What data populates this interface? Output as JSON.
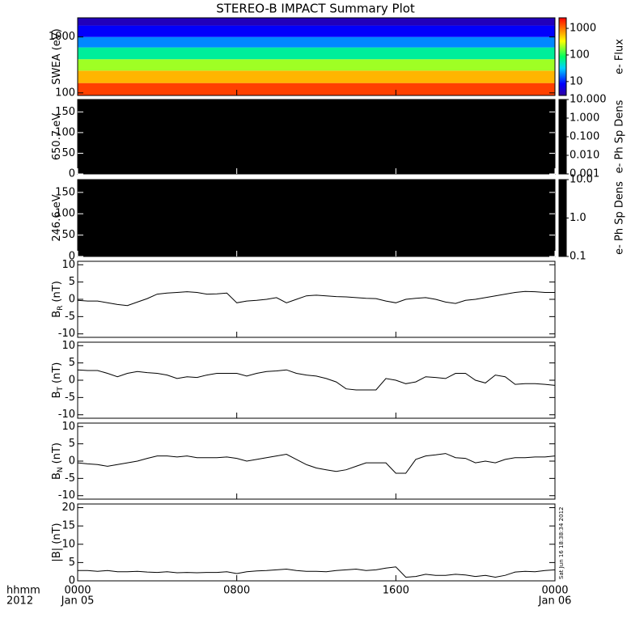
{
  "title": "STEREO-B IMPACT Summary Plot",
  "timestamp": "Sat Jun 16 18:38:34 2012",
  "xaxis": {
    "label": "hhmm",
    "year": "2012",
    "xlim": [
      0,
      24
    ],
    "xticks": [
      {
        "value": 0,
        "label": "0000",
        "date": "Jan 05"
      },
      {
        "value": 8,
        "label": "0800"
      },
      {
        "value": 16,
        "label": "1600"
      },
      {
        "value": 24,
        "label": "0000",
        "date": "Jan 06"
      }
    ]
  },
  "chart_data": [
    {
      "type": "spectrogram",
      "ylabel": "SWEA (eV)",
      "ylog": true,
      "ylim": [
        90,
        2200
      ],
      "yticks": [
        100,
        1000
      ],
      "energy_bins": [
        90,
        150,
        250,
        400,
        650,
        1000,
        1600,
        2200
      ],
      "flux": [
        1500,
        600,
        200,
        60,
        20,
        8,
        4
      ],
      "colorbar": {
        "label": "e- Flux",
        "log": true,
        "lim": [
          3,
          2500
        ],
        "ticks": [
          10,
          100,
          1000
        ]
      }
    },
    {
      "type": "spectrogram-empty",
      "ylabel": "650.7 eV",
      "ylim": [
        0,
        180
      ],
      "yticks": [
        0,
        50,
        100,
        150
      ],
      "colorbar": {
        "label": "e- Ph Sp Dens",
        "log": true,
        "lim": [
          0.001,
          10
        ],
        "ticks": [
          {
            "value": 0.001,
            "label": "0.001"
          },
          {
            "value": 0.01,
            "label": "0.010"
          },
          {
            "value": 0.1,
            "label": "0.100"
          },
          {
            "value": 1,
            "label": "1.000"
          },
          {
            "value": 10,
            "label": "10.000"
          }
        ]
      }
    },
    {
      "type": "spectrogram-empty",
      "ylabel": "246.6 eV",
      "ylim": [
        0,
        180
      ],
      "yticks": [
        0,
        50,
        100,
        150
      ],
      "colorbar": {
        "label": "e- Ph Sp Dens",
        "log": true,
        "lim": [
          0.1,
          10
        ],
        "ticks": [
          0.1,
          {
            "value": 1,
            "label": "1.0"
          },
          {
            "value": 10,
            "label": "10.0"
          }
        ]
      }
    },
    {
      "type": "line",
      "ylabel": "B",
      "ylabel_sub": "R",
      "ylabel_unit": "(nT)",
      "ylim": [
        -11,
        11
      ],
      "yticks": [
        -10,
        -5,
        0,
        5,
        10
      ],
      "color": "#000000",
      "x": [
        0,
        0.5,
        1,
        1.5,
        2,
        2.5,
        3,
        3.5,
        4,
        4.5,
        5,
        5.5,
        6,
        6.5,
        7,
        7.5,
        8,
        8.5,
        9,
        9.5,
        10,
        10.5,
        11,
        11.5,
        12,
        12.5,
        13,
        13.5,
        14,
        14.5,
        15,
        15.5,
        16,
        16.5,
        17,
        17.5,
        18,
        18.5,
        19,
        19.5,
        20,
        20.5,
        21,
        21.5,
        22,
        22.5,
        23,
        23.5,
        24
      ],
      "values": [
        -0.3,
        -0.5,
        -0.5,
        -1,
        -1.5,
        -1.8,
        -0.8,
        0.2,
        1.5,
        1.8,
        2,
        2.2,
        2,
        1.5,
        1.6,
        1.8,
        -1,
        -0.5,
        -0.3,
        0,
        0.5,
        -1,
        0,
        1,
        1.2,
        1,
        0.8,
        0.7,
        0.5,
        0.3,
        0.2,
        -0.5,
        -1,
        0,
        0.3,
        0.5,
        0,
        -0.8,
        -1.2,
        -0.3,
        0,
        0.5,
        1,
        1.5,
        2,
        2.3,
        2.2,
        2,
        2
      ]
    },
    {
      "type": "line",
      "ylabel": "B",
      "ylabel_sub": "T",
      "ylabel_unit": "(nT)",
      "ylim": [
        -11,
        11
      ],
      "yticks": [
        -10,
        -5,
        0,
        5,
        10
      ],
      "color": "#000000",
      "x": [
        0,
        0.5,
        1,
        1.5,
        2,
        2.5,
        3,
        3.5,
        4,
        4.5,
        5,
        5.5,
        6,
        6.5,
        7,
        7.5,
        8,
        8.5,
        9,
        9.5,
        10,
        10.5,
        11,
        11.5,
        12,
        12.5,
        13,
        13.5,
        14,
        14.5,
        15,
        15.5,
        16,
        16.5,
        17,
        17.5,
        18,
        18.5,
        19,
        19.5,
        20,
        20.5,
        21,
        21.5,
        22,
        22.5,
        23,
        23.5,
        24
      ],
      "values": [
        3,
        2.8,
        2.8,
        2,
        1,
        2,
        2.5,
        2.2,
        2,
        1.5,
        0.5,
        1,
        0.8,
        1.5,
        2,
        2,
        2,
        1.2,
        2,
        2.5,
        2.7,
        3,
        2,
        1.5,
        1.2,
        0.5,
        -0.5,
        -2.5,
        -2.8,
        -2.8,
        -2.8,
        0.5,
        0,
        -1,
        -0.5,
        1,
        0.8,
        0.5,
        2,
        2,
        0,
        -0.8,
        1.5,
        1,
        -1.2,
        -1,
        -1,
        -1.2,
        -1.5
      ]
    },
    {
      "type": "line",
      "ylabel": "B",
      "ylabel_sub": "N",
      "ylabel_unit": "(nT)",
      "ylim": [
        -11,
        11
      ],
      "yticks": [
        -10,
        -5,
        0,
        5,
        10
      ],
      "color": "#000000",
      "x": [
        0,
        0.5,
        1,
        1.5,
        2,
        2.5,
        3,
        3.5,
        4,
        4.5,
        5,
        5.5,
        6,
        6.5,
        7,
        7.5,
        8,
        8.5,
        9,
        9.5,
        10,
        10.5,
        11,
        11.5,
        12,
        12.5,
        13,
        13.5,
        14,
        14.5,
        15,
        15.5,
        16,
        16.5,
        17,
        17.5,
        18,
        18.5,
        19,
        19.5,
        20,
        20.5,
        21,
        21.5,
        22,
        22.5,
        23,
        23.5,
        24
      ],
      "values": [
        -0.5,
        -0.8,
        -1,
        -1.5,
        -1,
        -0.5,
        0,
        0.8,
        1.5,
        1.5,
        1.2,
        1.5,
        1,
        1,
        1,
        1.2,
        0.8,
        0,
        0.5,
        1,
        1.5,
        2,
        0.5,
        -1,
        -2,
        -2.5,
        -3,
        -2.5,
        -1.5,
        -0.5,
        -0.5,
        -0.5,
        -3.5,
        -3.5,
        0.5,
        1.5,
        1.8,
        2.2,
        1,
        0.8,
        -0.5,
        0,
        -0.5,
        0.5,
        1,
        1,
        1.2,
        1.2,
        1.5
      ]
    },
    {
      "type": "line",
      "ylabel": "|B| (nT)",
      "ylim": [
        0,
        21
      ],
      "yticks": [
        0,
        5,
        10,
        15,
        20
      ],
      "color": "#000000",
      "x": [
        0,
        0.5,
        1,
        1.5,
        2,
        2.5,
        3,
        3.5,
        4,
        4.5,
        5,
        5.5,
        6,
        6.5,
        7,
        7.5,
        8,
        8.5,
        9,
        9.5,
        10,
        10.5,
        11,
        11.5,
        12,
        12.5,
        13,
        13.5,
        14,
        14.5,
        15,
        15.5,
        16,
        16.5,
        17,
        17.5,
        18,
        18.5,
        19,
        19.5,
        20,
        20.5,
        21,
        21.5,
        22,
        22.5,
        23,
        23.5,
        24
      ],
      "values": [
        2.8,
        2.8,
        2.6,
        2.8,
        2.5,
        2.5,
        2.6,
        2.4,
        2.3,
        2.5,
        2.2,
        2.3,
        2.2,
        2.3,
        2.3,
        2.5,
        2,
        2.5,
        2.7,
        2.8,
        3,
        3.2,
        2.8,
        2.6,
        2.6,
        2.5,
        2.8,
        3,
        3.2,
        2.8,
        3,
        3.5,
        3.8,
        1,
        1.2,
        1.8,
        1.5,
        1.5,
        1.8,
        1.6,
        1.2,
        1.5,
        1,
        1.5,
        2.4,
        2.6,
        2.5,
        2.8,
        3
      ]
    }
  ]
}
